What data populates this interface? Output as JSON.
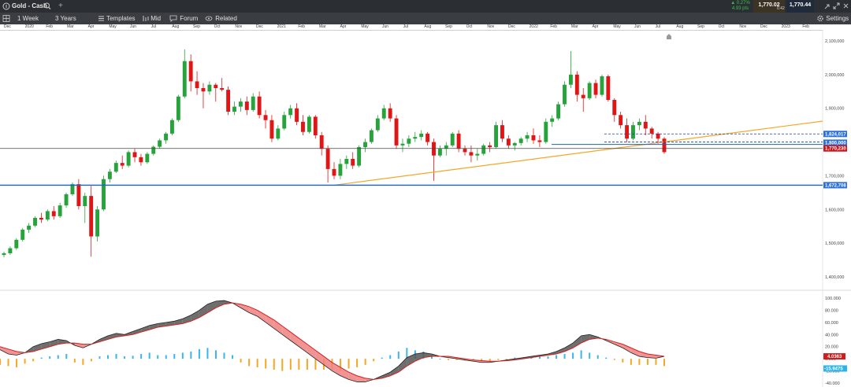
{
  "window": {
    "instrument_title": "Gold - Cash",
    "add_tab_symbol": "+"
  },
  "quote": {
    "change_pct": "▲ 0.27%",
    "change_pts": "4.93 pts",
    "sell_price": "1,770.02",
    "spread": "0.42",
    "buy_price": "1,770.44",
    "up_color": "#35c24c",
    "sell_bg": "#3b3324",
    "buy_bg": "#1f2b3a"
  },
  "toolbar": {
    "interval": "1 Week",
    "range": "3 Years",
    "templates": "Templates",
    "mid": "Mid",
    "forum": "Forum",
    "related": "Related",
    "settings": "Settings"
  },
  "time_axis": [
    "Dec",
    "2020",
    "Feb",
    "Mar",
    "Apr",
    "May",
    "Jun",
    "Jul",
    "Aug",
    "Sep",
    "Oct",
    "Nov",
    "Dec",
    "2021",
    "Feb",
    "Mar",
    "Apr",
    "May",
    "Jun",
    "Jul",
    "Aug",
    "Sep",
    "Oct",
    "Nov",
    "Dec",
    "2022",
    "Feb",
    "Mar",
    "Apr",
    "May",
    "Jun",
    "Jul",
    "Aug",
    "Sep",
    "Oct",
    "Nov",
    "Dec",
    "2023",
    "Feb"
  ],
  "price_axis": [
    "2,100,000",
    "2,000,000",
    "1,900,000",
    "1,800,000",
    "1,700,000",
    "1,600,000",
    "1,500,000",
    "1,400,000"
  ],
  "price_labels": {
    "level1": "1,824,017",
    "level2": "1,800,000",
    "current": "1,770,230",
    "support": "1,672,708"
  },
  "macd_axis": [
    "100.000",
    "80.000",
    "60.000",
    "40.000",
    "20.000",
    "0.000",
    "-20.000",
    "-40.000"
  ],
  "macd_labels": {
    "macd_value": "4.0363",
    "signal_value": "-15.9475"
  },
  "colors": {
    "bull": "#26a33a",
    "bear": "#e01515",
    "trendline": "#f5a623",
    "hline": "#1a5fd6",
    "hist_pos": "#3cb4f0",
    "hist_neg": "#f5a623",
    "macd_fill_pos": "#555555",
    "macd_fill_neg": "#f08080"
  },
  "chart_data": {
    "type": "candlestick",
    "timeframe": "1 Week",
    "ylim": [
      1400,
      2100
    ],
    "candles": [
      [
        1465,
        1475,
        1458,
        1470
      ],
      [
        1470,
        1490,
        1465,
        1485
      ],
      [
        1485,
        1515,
        1480,
        1510
      ],
      [
        1510,
        1545,
        1505,
        1540
      ],
      [
        1540,
        1560,
        1530,
        1552
      ],
      [
        1552,
        1580,
        1548,
        1575
      ],
      [
        1575,
        1590,
        1560,
        1570
      ],
      [
        1570,
        1600,
        1565,
        1595
      ],
      [
        1595,
        1610,
        1570,
        1580
      ],
      [
        1580,
        1620,
        1575,
        1612
      ],
      [
        1612,
        1650,
        1605,
        1645
      ],
      [
        1645,
        1680,
        1640,
        1675
      ],
      [
        1675,
        1690,
        1600,
        1610
      ],
      [
        1610,
        1650,
        1560,
        1640
      ],
      [
        1640,
        1670,
        1460,
        1520
      ],
      [
        1520,
        1610,
        1505,
        1600
      ],
      [
        1600,
        1700,
        1595,
        1690
      ],
      [
        1690,
        1720,
        1680,
        1712
      ],
      [
        1712,
        1745,
        1708,
        1738
      ],
      [
        1738,
        1760,
        1720,
        1730
      ],
      [
        1730,
        1775,
        1725,
        1770
      ],
      [
        1770,
        1780,
        1740,
        1755
      ],
      [
        1755,
        1765,
        1730,
        1740
      ],
      [
        1740,
        1770,
        1735,
        1765
      ],
      [
        1765,
        1790,
        1760,
        1786
      ],
      [
        1786,
        1810,
        1780,
        1805
      ],
      [
        1805,
        1830,
        1795,
        1825
      ],
      [
        1825,
        1870,
        1820,
        1865
      ],
      [
        1865,
        1940,
        1860,
        1935
      ],
      [
        1935,
        2075,
        1930,
        2040
      ],
      [
        2040,
        2060,
        1950,
        1980
      ],
      [
        1980,
        2010,
        1940,
        1960
      ],
      [
        1960,
        1975,
        1900,
        1950
      ],
      [
        1950,
        1980,
        1940,
        1970
      ],
      [
        1970,
        1975,
        1920,
        1960
      ],
      [
        1960,
        1990,
        1950,
        1955
      ],
      [
        1955,
        1965,
        1880,
        1890
      ],
      [
        1890,
        1920,
        1880,
        1905
      ],
      [
        1905,
        1930,
        1890,
        1920
      ],
      [
        1920,
        1935,
        1880,
        1895
      ],
      [
        1895,
        1945,
        1890,
        1935
      ],
      [
        1935,
        1950,
        1870,
        1880
      ],
      [
        1880,
        1895,
        1840,
        1865
      ],
      [
        1865,
        1880,
        1800,
        1810
      ],
      [
        1810,
        1850,
        1805,
        1840
      ],
      [
        1840,
        1890,
        1835,
        1880
      ],
      [
        1880,
        1910,
        1870,
        1900
      ],
      [
        1900,
        1915,
        1850,
        1860
      ],
      [
        1860,
        1880,
        1820,
        1830
      ],
      [
        1830,
        1880,
        1825,
        1875
      ],
      [
        1875,
        1880,
        1810,
        1820
      ],
      [
        1820,
        1830,
        1760,
        1780
      ],
      [
        1780,
        1790,
        1680,
        1720
      ],
      [
        1720,
        1740,
        1690,
        1700
      ],
      [
        1700,
        1750,
        1690,
        1735
      ],
      [
        1735,
        1760,
        1720,
        1750
      ],
      [
        1750,
        1770,
        1720,
        1730
      ],
      [
        1730,
        1790,
        1725,
        1785
      ],
      [
        1785,
        1810,
        1770,
        1800
      ],
      [
        1800,
        1840,
        1795,
        1835
      ],
      [
        1835,
        1880,
        1830,
        1870
      ],
      [
        1870,
        1910,
        1865,
        1900
      ],
      [
        1900,
        1915,
        1860,
        1870
      ],
      [
        1870,
        1880,
        1780,
        1790
      ],
      [
        1790,
        1810,
        1770,
        1795
      ],
      [
        1795,
        1820,
        1785,
        1810
      ],
      [
        1810,
        1830,
        1800,
        1815
      ],
      [
        1815,
        1835,
        1805,
        1825
      ],
      [
        1825,
        1830,
        1790,
        1800
      ],
      [
        1800,
        1810,
        1685,
        1760
      ],
      [
        1760,
        1790,
        1755,
        1780
      ],
      [
        1780,
        1800,
        1760,
        1790
      ],
      [
        1790,
        1830,
        1785,
        1825
      ],
      [
        1825,
        1835,
        1770,
        1780
      ],
      [
        1780,
        1790,
        1760,
        1770
      ],
      [
        1770,
        1790,
        1740,
        1760
      ],
      [
        1760,
        1780,
        1745,
        1765
      ],
      [
        1765,
        1795,
        1760,
        1790
      ],
      [
        1790,
        1800,
        1770,
        1785
      ],
      [
        1785,
        1860,
        1780,
        1850
      ],
      [
        1850,
        1865,
        1800,
        1810
      ],
      [
        1810,
        1820,
        1780,
        1790
      ],
      [
        1790,
        1800,
        1775,
        1797
      ],
      [
        1797,
        1815,
        1790,
        1810
      ],
      [
        1810,
        1830,
        1800,
        1820
      ],
      [
        1820,
        1840,
        1795,
        1805
      ],
      [
        1805,
        1820,
        1785,
        1800
      ],
      [
        1800,
        1870,
        1795,
        1860
      ],
      [
        1860,
        1880,
        1845,
        1870
      ],
      [
        1870,
        1920,
        1865,
        1912
      ],
      [
        1912,
        1980,
        1905,
        1970
      ],
      [
        1970,
        2070,
        1960,
        2000
      ],
      [
        2000,
        2010,
        1920,
        1940
      ],
      [
        1940,
        1960,
        1890,
        1930
      ],
      [
        1930,
        1980,
        1925,
        1975
      ],
      [
        1975,
        1985,
        1930,
        1940
      ],
      [
        1940,
        2000,
        1935,
        1995
      ],
      [
        1995,
        2000,
        1920,
        1925
      ],
      [
        1925,
        1930,
        1860,
        1880
      ],
      [
        1880,
        1890,
        1840,
        1850
      ],
      [
        1850,
        1870,
        1800,
        1810
      ],
      [
        1810,
        1860,
        1805,
        1850
      ],
      [
        1850,
        1870,
        1835,
        1860
      ],
      [
        1860,
        1880,
        1820,
        1840
      ],
      [
        1840,
        1845,
        1810,
        1825
      ],
      [
        1825,
        1830,
        1795,
        1810
      ],
      [
        1810,
        1815,
        1765,
        1770
      ]
    ],
    "trendline": {
      "from": [
        53,
        1672
      ],
      "to": [
        108,
        1862
      ]
    },
    "horizontal_lines": [
      1824,
      1800,
      1793,
      1781,
      1672
    ],
    "macd": {
      "ylim": [
        -40,
        100
      ],
      "macd_line": [
        15,
        8,
        6,
        10,
        20,
        25,
        28,
        32,
        30,
        22,
        18,
        24,
        32,
        38,
        42,
        40,
        45,
        50,
        55,
        58,
        60,
        62,
        66,
        72,
        80,
        90,
        95,
        96,
        92,
        84,
        76,
        70,
        60,
        50,
        40,
        30,
        20,
        10,
        0,
        -10,
        -20,
        -28,
        -34,
        -38,
        -38,
        -34,
        -28,
        -22,
        -12,
        2,
        8,
        10,
        8,
        4,
        2,
        0,
        -2,
        -4,
        -6,
        -6,
        -4,
        -2,
        0,
        2,
        4,
        6,
        8,
        12,
        18,
        26,
        38,
        40,
        36,
        30,
        24,
        18,
        10,
        4,
        2,
        1,
        4
      ],
      "signal_line": [
        20,
        16,
        12,
        10,
        12,
        16,
        20,
        24,
        26,
        26,
        24,
        24,
        28,
        32,
        36,
        38,
        40,
        44,
        48,
        52,
        54,
        56,
        58,
        62,
        68,
        76,
        84,
        90,
        92,
        90,
        86,
        80,
        72,
        64,
        54,
        44,
        34,
        24,
        14,
        4,
        -6,
        -14,
        -22,
        -28,
        -32,
        -34,
        -32,
        -28,
        -22,
        -12,
        -4,
        2,
        4,
        4,
        4,
        2,
        0,
        -2,
        -3,
        -4,
        -4,
        -3,
        -2,
        0,
        2,
        4,
        6,
        8,
        12,
        18,
        26,
        32,
        34,
        32,
        28,
        24,
        18,
        12,
        8,
        6,
        4
      ],
      "histogram": [
        -10,
        -12,
        -14,
        -8,
        -4,
        2,
        4,
        6,
        8,
        -6,
        -10,
        -4,
        4,
        6,
        8,
        4,
        5,
        8,
        10,
        6,
        6,
        8,
        10,
        12,
        16,
        18,
        14,
        10,
        6,
        -6,
        -12,
        -14,
        -16,
        -18,
        -20,
        -18,
        -18,
        -18,
        -18,
        -18,
        -18,
        -20,
        -16,
        -14,
        -10,
        -4,
        2,
        6,
        12,
        18,
        14,
        12,
        6,
        0,
        -2,
        -2,
        -3,
        -3,
        -4,
        -4,
        -2,
        -1,
        2,
        2,
        2,
        4,
        4,
        6,
        8,
        10,
        14,
        10,
        6,
        2,
        -2,
        -6,
        -10,
        -10,
        -10,
        -10,
        -12
      ]
    }
  }
}
